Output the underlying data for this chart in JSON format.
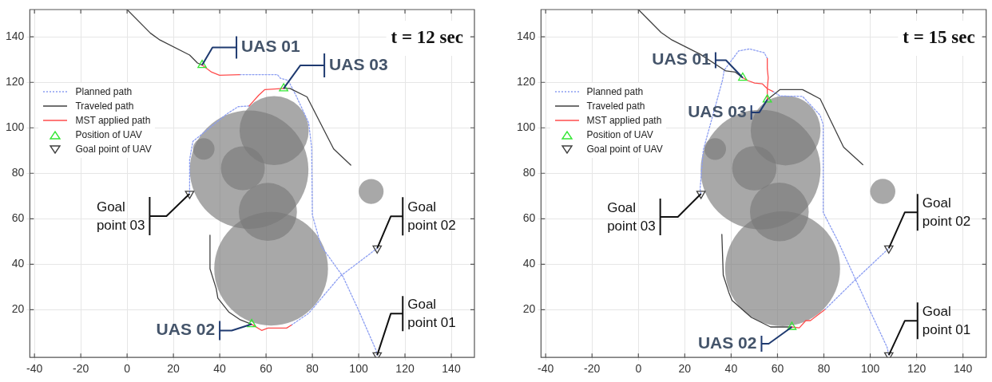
{
  "chart_data": [
    {
      "type": "line",
      "title": "t = 12 sec",
      "xlim": [
        -42,
        150
      ],
      "ylim": [
        -1,
        152
      ],
      "xticks": [
        -40,
        -20,
        0,
        20,
        40,
        60,
        80,
        100,
        120,
        140
      ],
      "yticks": [
        20,
        40,
        60,
        80,
        100,
        120,
        140
      ],
      "grid": true,
      "legend": "left",
      "series": [
        {
          "type": "bubble",
          "color": "#7a7a7a",
          "x": [
            52.7,
            63.5,
            33.1,
            50,
            60.8,
            62.2,
            105.4
          ],
          "values": [
            81.6,
            98.8,
            90.7,
            82.2,
            63,
            38,
            72
          ],
          "sizes": [
            1,
            0.34,
            0.033,
            0.137,
            0.24,
            0.92,
            0.044
          ]
        },
        {
          "type": "line",
          "name": "Planned path",
          "color": "#8c9ef2",
          "line_style": "dotted",
          "marker": "none",
          "x": [
            48.6,
            64.9,
            66.2,
            69.6,
            72.9,
            78.4,
            79.7,
            80,
            83.8,
            93.2,
            100,
            107.5,
            108,
            null,
            52.7,
            48,
            43.2,
            28.4,
            27,
            27,
            null,
            70.9,
            78.4,
            91.9,
            108
          ],
          "values": [
            123.4,
            123.4,
            121.8,
            120.8,
            114.3,
            102.2,
            91.4,
            61.6,
            48,
            34.6,
            19.7,
            2.2,
            0,
            null,
            109.6,
            109.3,
            106.2,
            94,
            86,
            71,
            null,
            13.2,
            18.4,
            34.6,
            47
          ]
        },
        {
          "type": "line",
          "name": "Traveled path",
          "color": "#404040",
          "line_style": "solid",
          "marker": "none",
          "x": [
            0,
            10.1,
            14.2,
            27,
            30.4,
            32.4,
            null,
            96.6,
            89.2,
            77.7,
            70.3,
            67.6,
            null,
            35.8,
            35.8,
            38.5,
            39.2,
            43.9,
            48.6,
            53.8
          ],
          "values": [
            152,
            141.6,
            138.6,
            132,
            128.5,
            127.6,
            null,
            83.6,
            90.7,
            113.6,
            117.3,
            117.3,
            null,
            52.8,
            38,
            29.2,
            25.1,
            19,
            15.7,
            13.6
          ]
        },
        {
          "type": "line",
          "name": "MST applied path",
          "color": "#ff4d4d",
          "line_style": "solid",
          "marker": "none",
          "x": [
            32.4,
            36.5,
            39.9,
            48.6,
            null,
            67.6,
            59.5,
            56.8,
            52.7,
            null,
            53.8,
            58.1,
            60.8,
            68.9,
            70.9
          ],
          "values": [
            127.6,
            124.5,
            123.1,
            123.4,
            null,
            117.3,
            116.8,
            114.3,
            109.6,
            null,
            13.6,
            10.9,
            11.9,
            11.9,
            13.2
          ]
        },
        {
          "type": "scatter",
          "name": "Position of UAV",
          "color": "#33e633",
          "marker": "triangle",
          "x": [
            32.4,
            67.6,
            53.8
          ],
          "values": [
            127.6,
            117.3,
            13.6
          ]
        },
        {
          "type": "scatter",
          "name": "Goal point of UAV",
          "color": "#404040",
          "marker": "triangle_down",
          "x": [
            108,
            108,
            27
          ],
          "values": [
            0,
            47,
            71
          ]
        }
      ],
      "annotations": [
        {
          "text": "UAS 01",
          "x": 32.4,
          "y": 127.6
        },
        {
          "text": "UAS 03",
          "x": 67.6,
          "y": 117.3
        },
        {
          "text": "UAS 02",
          "x": 53.8,
          "y": 13.6
        },
        {
          "text": "Goal point 03",
          "x": 27,
          "y": 71
        },
        {
          "text": "Goal point 02",
          "x": 108,
          "y": 47
        },
        {
          "text": "Goal point 01",
          "x": 108,
          "y": 0
        }
      ]
    },
    {
      "type": "line",
      "title": "t = 15 sec",
      "xlim": [
        -42,
        150
      ],
      "ylim": [
        -1,
        152
      ],
      "xticks": [
        -40,
        -20,
        0,
        20,
        40,
        60,
        80,
        100,
        120,
        140
      ],
      "yticks": [
        20,
        40,
        60,
        80,
        100,
        120,
        140
      ],
      "grid": true,
      "legend": "left",
      "series": [
        {
          "type": "bubble",
          "color": "#7a7a7a",
          "x": [
            52.7,
            63.5,
            33.1,
            50,
            60.8,
            62.2,
            105.4
          ],
          "values": [
            81.6,
            98.8,
            90.7,
            82.2,
            63,
            38,
            72
          ],
          "sizes": [
            1,
            0.34,
            0.033,
            0.137,
            0.24,
            0.92,
            0.044
          ]
        },
        {
          "type": "line",
          "name": "Planned path",
          "color": "#8c9ef2",
          "line_style": "dotted",
          "marker": "none",
          "x": [
            58,
            61.1,
            70.8,
            78.4,
            79.7,
            79.7,
            86,
            92.8,
            99.7,
            107.3,
            108,
            null,
            55.6,
            54.3,
            48,
            43.2,
            37,
            36.3,
            28,
            26.6,
            27,
            null,
            80.4,
            92.8,
            108
          ],
          "values": [
            116,
            114,
            113.8,
            105.5,
            101.4,
            62.8,
            50.3,
            35.2,
            20,
            3.4,
            0,
            null,
            130.5,
            133,
            134.7,
            133.8,
            125.3,
            121,
            90.3,
            73,
            71,
            null,
            20,
            32.4,
            47
          ]
        },
        {
          "type": "line",
          "name": "Traveled path",
          "color": "#404040",
          "line_style": "solid",
          "marker": "none",
          "x": [
            0,
            9.8,
            14.5,
            26.6,
            37.7,
            41.8,
            45,
            null,
            96.8,
            88.5,
            78.4,
            70.8,
            61.1,
            55.6,
            null,
            36,
            36.6,
            39,
            40.4,
            48.7,
            57,
            66.2
          ],
          "values": [
            152,
            141.9,
            138.6,
            132.4,
            125,
            124.5,
            122,
            null,
            83.8,
            91.5,
            112.7,
            116.8,
            116.8,
            112.4,
            null,
            53.1,
            35.2,
            27.6,
            24.1,
            16.6,
            12.4,
            12.4
          ]
        },
        {
          "type": "line",
          "name": "MST applied path",
          "color": "#ff4d4d",
          "line_style": "solid",
          "marker": "none",
          "x": [
            45,
            47.4,
            50.1,
            53.5,
            55.6,
            58,
            null,
            55.6,
            55.6,
            56,
            55.6,
            55.6,
            null,
            66.2,
            69.4,
            72.2,
            74.2,
            80.4
          ],
          "values": [
            122,
            120.7,
            119.7,
            119.3,
            117.2,
            116,
            null,
            112.4,
            117,
            122,
            126,
            130.5,
            null,
            12.4,
            12,
            15.2,
            15.2,
            20
          ]
        },
        {
          "type": "scatter",
          "name": "Position of UAV",
          "color": "#33e633",
          "marker": "triangle",
          "x": [
            45,
            55.6,
            66.2
          ],
          "values": [
            122,
            112.4,
            12.4
          ]
        },
        {
          "type": "scatter",
          "name": "Goal point of UAV",
          "color": "#404040",
          "marker": "triangle_down",
          "x": [
            108,
            108,
            27
          ],
          "values": [
            0,
            47,
            71
          ]
        }
      ],
      "annotations": [
        {
          "text": "UAS 01",
          "x": 45,
          "y": 122
        },
        {
          "text": "UAS 03",
          "x": 55.6,
          "y": 112.4
        },
        {
          "text": "UAS 02",
          "x": 66.2,
          "y": 12.4
        },
        {
          "text": "Goal point 03",
          "x": 27,
          "y": 71
        },
        {
          "text": "Goal point 02",
          "x": 108,
          "y": 47
        },
        {
          "text": "Goal point 01",
          "x": 108,
          "y": 0
        }
      ]
    }
  ]
}
